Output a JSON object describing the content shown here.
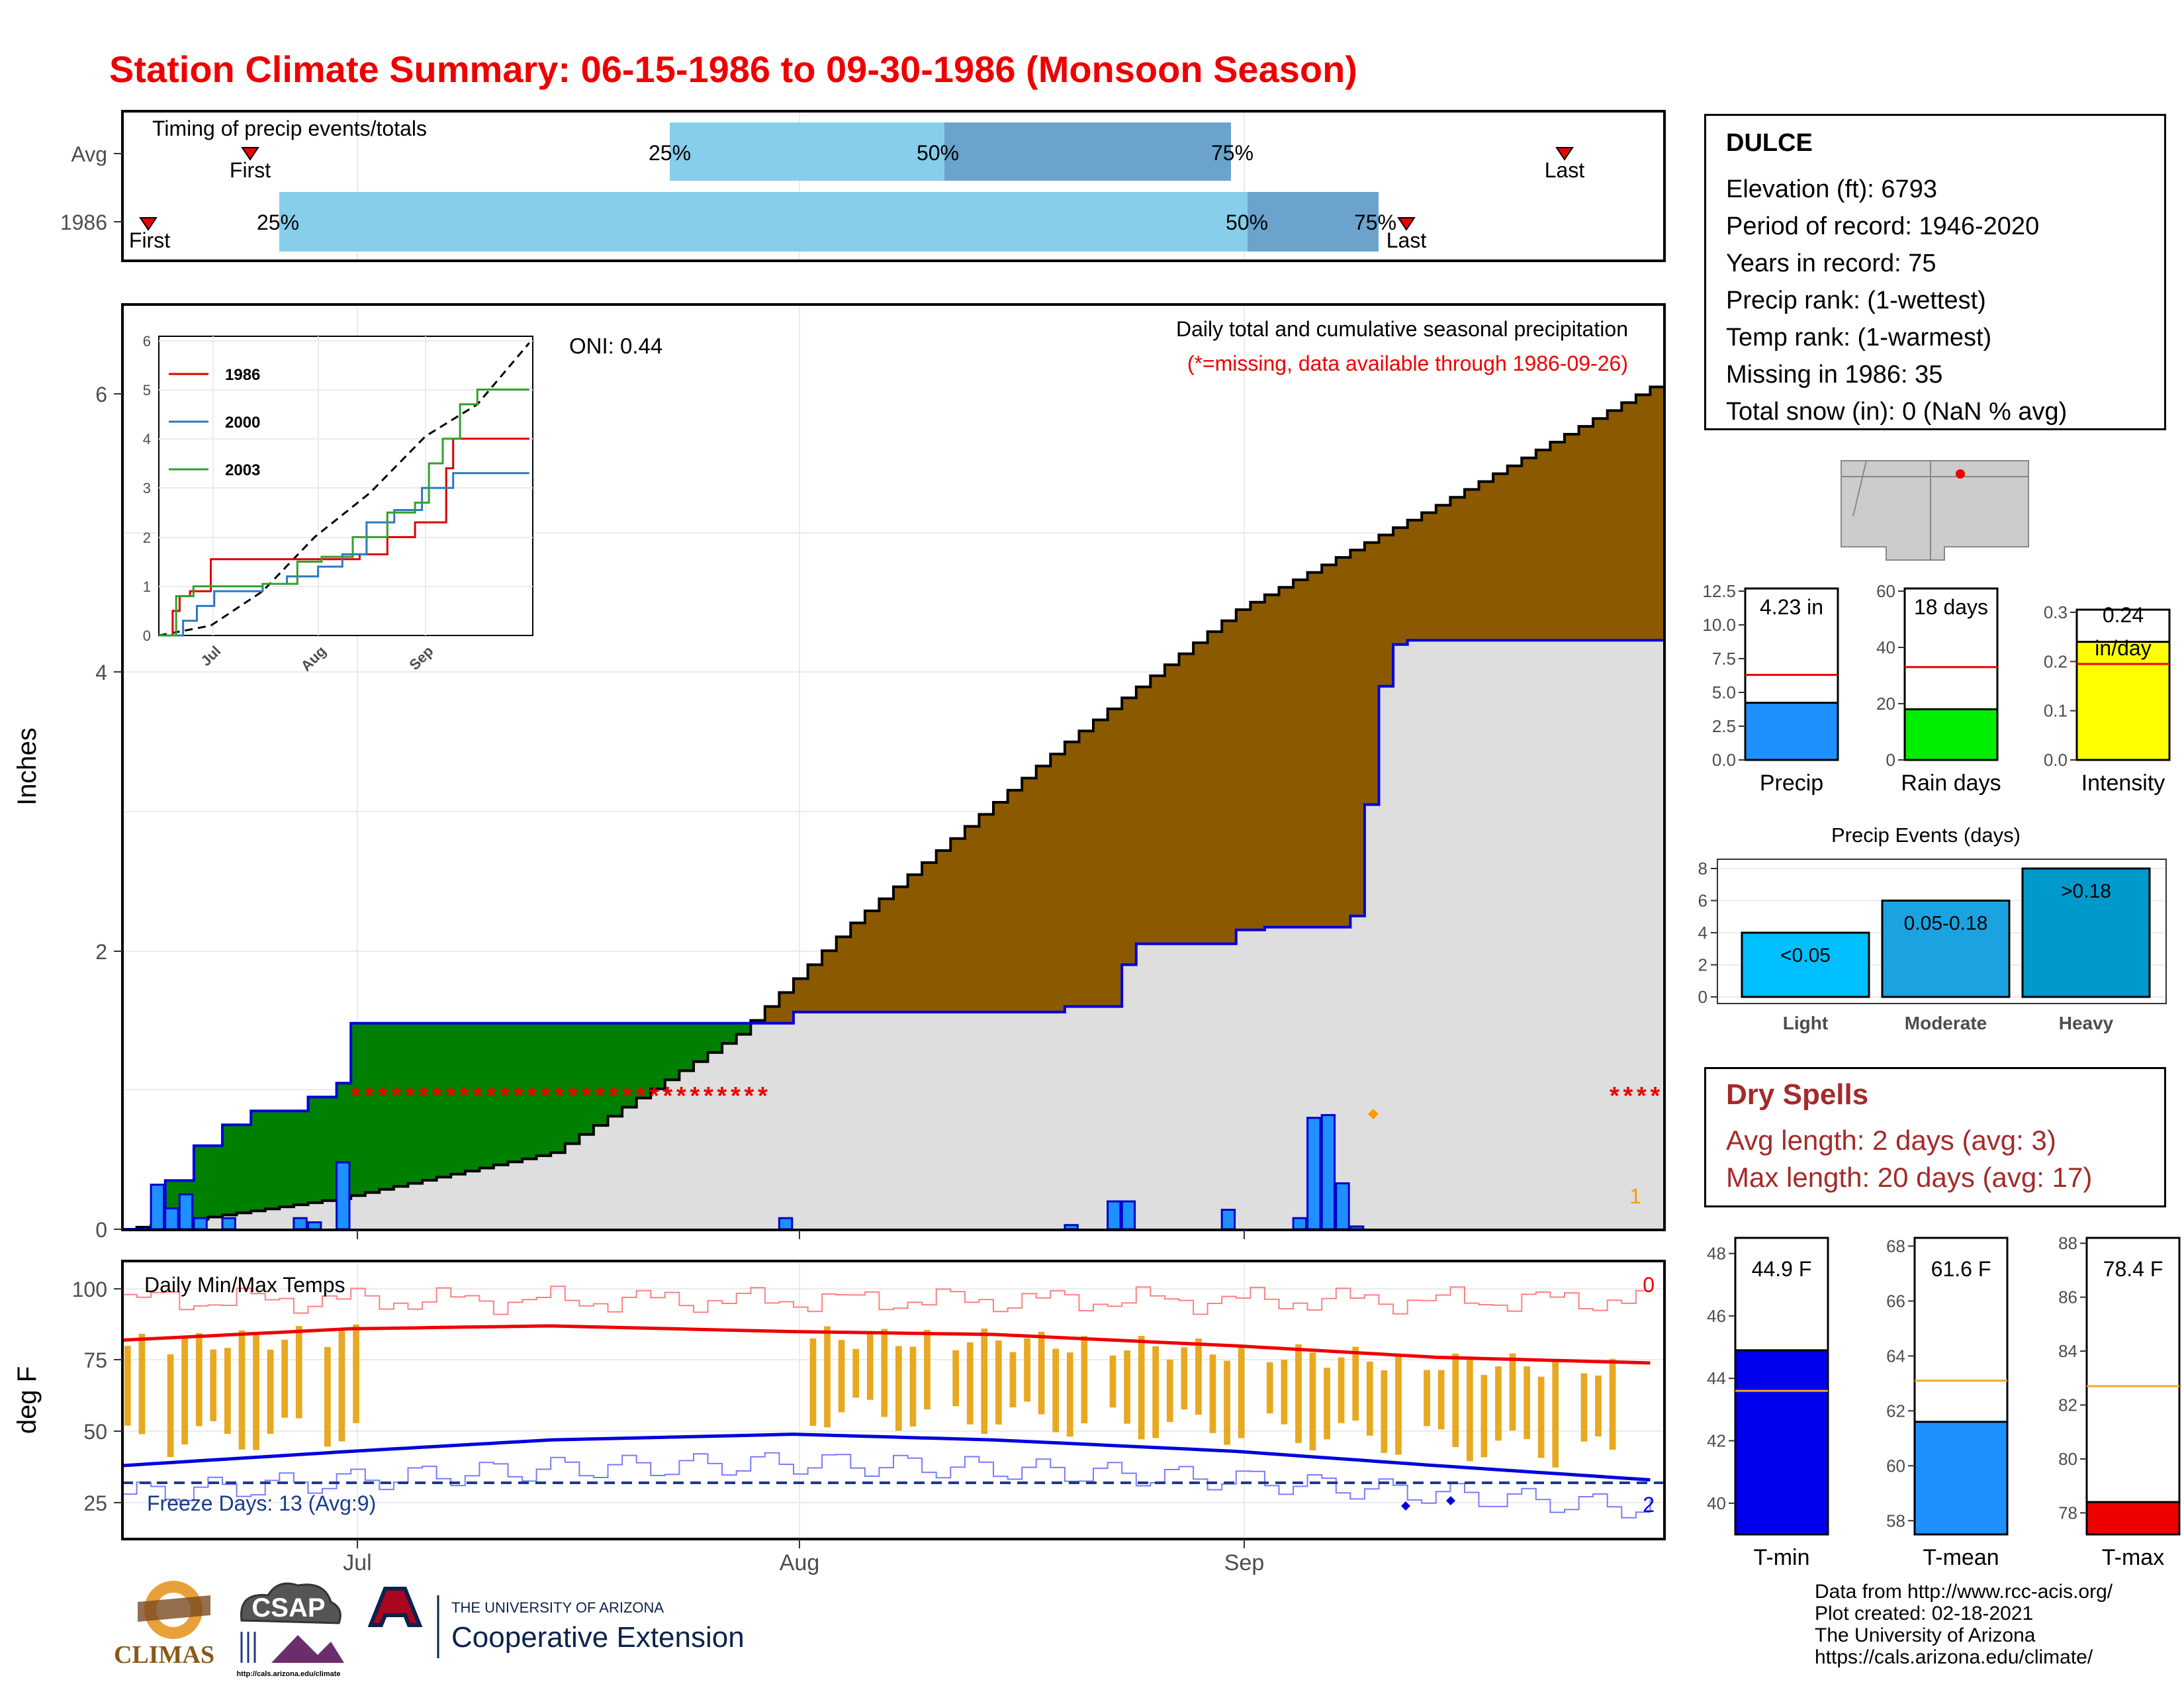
{
  "title": "Station Climate Summary: 06-15-1986 to 09-30-1986 (Monsoon Season)",
  "colors": {
    "title": "#ee0000",
    "seasonal_fill": "#8b5a00",
    "avg_fill": "#dedede",
    "early_fill": "#008000",
    "bar": "#1e90ff",
    "dry": "#a52a2a"
  },
  "timing_panel": {
    "label": "Timing of precip events/totals",
    "rows": [
      "Avg",
      "1986"
    ],
    "first_label": "First",
    "last_label": "Last",
    "pct_labels": [
      "25%",
      "50%",
      "75%"
    ]
  },
  "station": {
    "name": "DULCE",
    "lines": [
      "Elevation (ft): 6793",
      "Period of record: 1946-2020",
      "Years in record: 75",
      "Precip rank:  (1-wettest)",
      "Temp rank:  (1-warmest)",
      "Missing in 1986: 35",
      "Total snow (in): 0 (NaN % avg)"
    ]
  },
  "main_panel": {
    "ylabel": "Inches",
    "oni": "ONI: 0.44",
    "caption": "Daily total and cumulative seasonal precipitation",
    "missing_note": "(*=missing, data available through 1986-09-26)",
    "count_label": "1",
    "yticks": [
      "0",
      "2",
      "4",
      "6"
    ]
  },
  "temp_panel": {
    "ylabel": "deg F",
    "label": "Daily Min/Max Temps",
    "freeze_label": "Freeze Days: 13 (Avg:9)",
    "hot_count": "0",
    "freeze_count": "2",
    "yticks": [
      "25",
      "50",
      "75",
      "100"
    ]
  },
  "x_months": [
    "Jul",
    "Aug",
    "Sep"
  ],
  "inset": {
    "yticks": [
      "0",
      "1",
      "2",
      "3",
      "4",
      "5",
      "6"
    ],
    "xticks": [
      "Jul",
      "Aug",
      "Sep"
    ],
    "legend": [
      {
        "name": "1986",
        "color": "#dd0000"
      },
      {
        "name": "2000",
        "color": "#2b79c2"
      },
      {
        "name": "2003",
        "color": "#33a02c"
      }
    ]
  },
  "summary_bars": [
    {
      "label": "Precip",
      "value_label": "4.23 in",
      "yticks": [
        "0.0",
        "2.5",
        "5.0",
        "7.5",
        "10.0",
        "12.5"
      ],
      "color": "#1e90ff"
    },
    {
      "label": "Rain days",
      "value_label": "18 days",
      "yticks": [
        "0",
        "20",
        "40",
        "60"
      ],
      "color": "#00ee00"
    },
    {
      "label": "Intensity",
      "value_label": "0.24 in/day",
      "yticks": [
        "0.0",
        "0.1",
        "0.2",
        "0.3"
      ],
      "color": "#ffff00"
    }
  ],
  "events": {
    "title": "Precip Events (days)",
    "yticks": [
      "0",
      "2",
      "4",
      "6",
      "8"
    ],
    "bars": [
      {
        "category": "Light",
        "label": "<0.05",
        "value": 4,
        "color": "#00bfff"
      },
      {
        "category": "Moderate",
        "label": "0.05-0.18",
        "value": 6,
        "color": "#1aa3e0"
      },
      {
        "category": "Heavy",
        "label": ">0.18",
        "value": 8,
        "color": "#0099cc"
      }
    ]
  },
  "dry_spells": {
    "title": "Dry Spells",
    "avg": "Avg length: 2 days (avg: 3)",
    "max": "Max length: 20 days (avg: 17)"
  },
  "temp_bars": [
    {
      "label": "T-min",
      "value_label": "44.9 F",
      "yticks": [
        "40",
        "42",
        "44",
        "46",
        "48"
      ],
      "color": "#0000ee"
    },
    {
      "label": "T-mean",
      "value_label": "61.6 F",
      "yticks": [
        "58",
        "60",
        "62",
        "64",
        "66",
        "68"
      ],
      "color": "#1e90ff"
    },
    {
      "label": "T-max",
      "value_label": "78.4 F",
      "yticks": [
        "78",
        "80",
        "82",
        "84",
        "86",
        "88"
      ],
      "color": "#ee0000"
    }
  ],
  "credits": [
    "Data from http://www.rcc-acis.org/",
    "Plot created: 02-18-2021",
    "The University of Arizona",
    "https://cals.arizona.edu/climate/"
  ],
  "logos": {
    "climas": "CLIMAS",
    "csap": "CSAP",
    "csap_url": "http://cals.arizona.edu/climate",
    "ua_small": "THE UNIVERSITY OF ARIZONA",
    "ua_big": "Cooperative Extension"
  },
  "chart_data": [
    {
      "type": "area",
      "title": "Daily total and cumulative seasonal precipitation",
      "ylabel": "Inches",
      "ylim": [
        0,
        6.6
      ],
      "x_range": [
        "1986-06-15",
        "1986-09-30"
      ],
      "series": [
        {
          "name": "1986 cumulative",
          "x": [
            "06-15",
            "06-18",
            "06-20",
            "06-22",
            "06-24",
            "06-28",
            "06-30",
            "07-01",
            "07-06",
            "07-07",
            "08-01",
            "08-20",
            "08-24",
            "08-25",
            "09-01",
            "09-03",
            "09-09",
            "09-10",
            "09-11",
            "09-12",
            "09-13",
            "09-26"
          ],
          "values": [
            0,
            0.35,
            0.6,
            0.75,
            0.85,
            0.95,
            1.05,
            1.48,
            1.48,
            1.48,
            1.56,
            1.6,
            1.9,
            2.05,
            2.15,
            2.17,
            2.25,
            3.05,
            3.9,
            4.2,
            4.23,
            4.23
          ]
        },
        {
          "name": "Average cumulative",
          "x": [
            "06-15",
            "06-30",
            "07-15",
            "07-28",
            "08-05",
            "08-20",
            "09-01",
            "09-15",
            "09-30"
          ],
          "values": [
            0,
            0.22,
            0.55,
            1.4,
            2.2,
            3.5,
            4.45,
            5.2,
            6.05
          ]
        },
        {
          "name": "Daily precipitation",
          "x": [
            "06-17",
            "06-18",
            "06-19",
            "06-20",
            "06-22",
            "06-27",
            "06-28",
            "06-30",
            "07-31",
            "08-20",
            "08-23",
            "08-24",
            "08-31",
            "09-05",
            "09-06",
            "09-07",
            "09-08",
            "09-09"
          ],
          "values": [
            0.32,
            0.15,
            0.25,
            0.08,
            0.08,
            0.08,
            0.05,
            0.48,
            0.08,
            0.03,
            0.2,
            0.2,
            0.14,
            0.08,
            0.8,
            0.82,
            0.33,
            0.02
          ]
        }
      ]
    },
    {
      "type": "line",
      "title": "Daily Min/Max Temps",
      "ylabel": "deg F",
      "ylim": [
        17,
        108
      ],
      "series": [
        {
          "name": "Avg max",
          "x": [
            "06-15",
            "07-01",
            "07-15",
            "08-01",
            "08-15",
            "09-01",
            "09-15",
            "09-30"
          ],
          "values": [
            82,
            86,
            87,
            85,
            84,
            80,
            76,
            74
          ]
        },
        {
          "name": "Avg min",
          "x": [
            "06-15",
            "07-01",
            "07-15",
            "08-01",
            "08-15",
            "09-01",
            "09-15",
            "09-30"
          ],
          "values": [
            38,
            43,
            47,
            49,
            47,
            43,
            38,
            33
          ]
        },
        {
          "name": "Freeze threshold",
          "values": [
            32
          ]
        }
      ]
    },
    {
      "type": "bar",
      "title": "Precip Events (days)",
      "categories": [
        "Light",
        "Moderate",
        "Heavy"
      ],
      "values": [
        4,
        6,
        8
      ]
    },
    {
      "type": "bar",
      "categories": [
        "Precip",
        "Rain days",
        "Intensity"
      ],
      "values": [
        4.23,
        18,
        0.24
      ],
      "averages": [
        6.3,
        33,
        0.195
      ]
    },
    {
      "type": "bar",
      "categories": [
        "T-min",
        "T-mean",
        "T-max"
      ],
      "values": [
        44.9,
        61.6,
        78.4
      ],
      "averages": [
        43.6,
        63.1,
        82.7
      ]
    }
  ]
}
